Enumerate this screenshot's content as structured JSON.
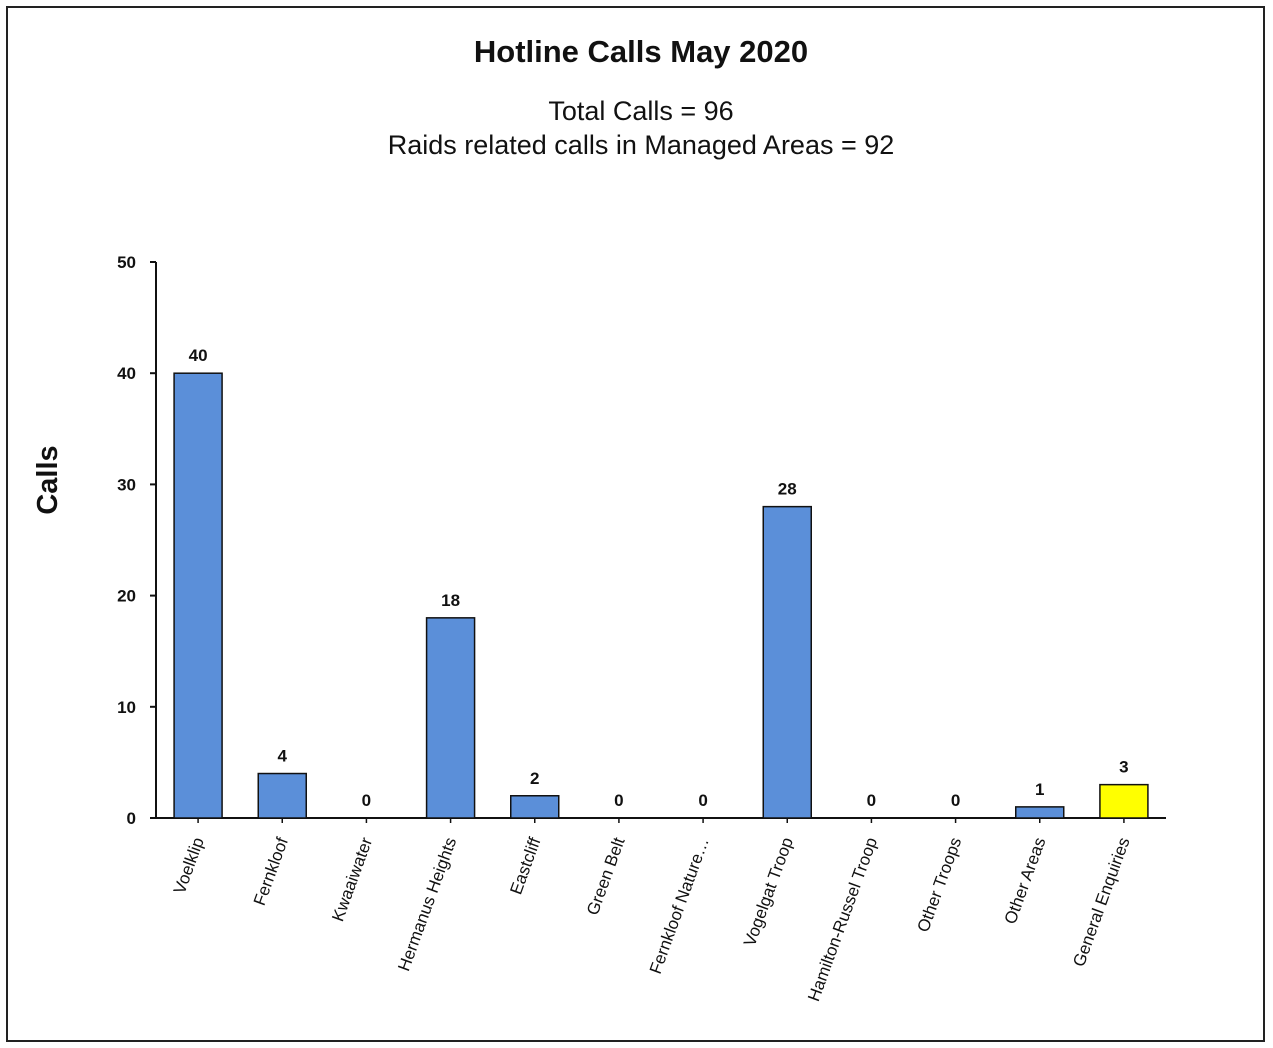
{
  "chart_data": {
    "type": "bar",
    "title": "Hotline Calls May 2020",
    "subtitle_lines": [
      "Total Calls = 96",
      "Raids related calls in Managed Areas = 92"
    ],
    "ylabel": "Calls",
    "xlabel": "",
    "ylim": [
      0,
      50
    ],
    "yticks": [
      0,
      10,
      20,
      30,
      40,
      50
    ],
    "grid": false,
    "categories": [
      "Voelklip",
      "Fernkloof",
      "Kwaaiwater",
      "Hermanus Heights",
      "Eastcliff",
      "Green Belt",
      "Fernkloof Nature…",
      "Vogelgat Troop",
      "Hamilton-Russel Troop",
      "Other Troops",
      "Other Areas",
      "General Enquiries"
    ],
    "values": [
      40,
      4,
      0,
      18,
      2,
      0,
      0,
      28,
      0,
      0,
      1,
      3
    ],
    "data_labels": [
      "40",
      "4",
      "0",
      "18",
      "2",
      "0",
      "0",
      "28",
      "0",
      "0",
      "1",
      "3"
    ],
    "bar_colors": [
      "#5b8fd9",
      "#5b8fd9",
      "#5b8fd9",
      "#5b8fd9",
      "#5b8fd9",
      "#5b8fd9",
      "#5b8fd9",
      "#5b8fd9",
      "#5b8fd9",
      "#5b8fd9",
      "#5b8fd9",
      "#ffff00"
    ]
  }
}
